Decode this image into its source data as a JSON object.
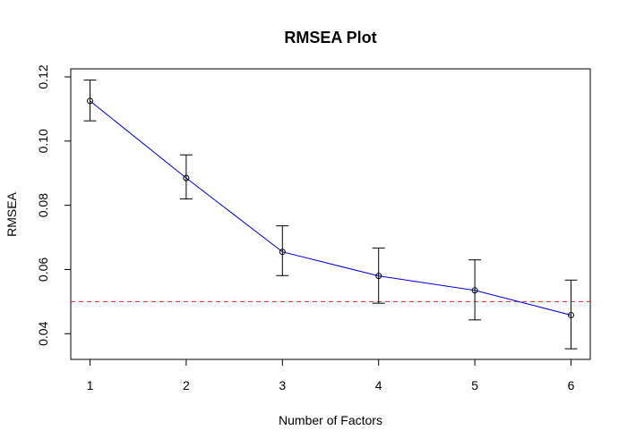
{
  "chart_data": {
    "type": "line",
    "title": "RMSEA Plot",
    "xlabel": "Number of Factors",
    "ylabel": "RMSEA",
    "x": [
      1,
      2,
      3,
      4,
      5,
      6
    ],
    "xlim": [
      0.8,
      6.2
    ],
    "ylim": [
      0.032,
      0.1225
    ],
    "xticks": [
      1,
      2,
      3,
      4,
      5,
      6
    ],
    "yticks": [
      0.04,
      0.06,
      0.08,
      0.1,
      0.12
    ],
    "ytick_labels": [
      "0.04",
      "0.06",
      "0.08",
      "0.10",
      "0.12"
    ],
    "grid": false,
    "series": [
      {
        "values": [
          0.1125,
          0.0885,
          0.0655,
          0.058,
          0.0535,
          0.0458
        ],
        "lower": [
          0.1063,
          0.082,
          0.0581,
          0.0495,
          0.0443,
          0.0353
        ],
        "upper": [
          0.119,
          0.0957,
          0.0736,
          0.0667,
          0.063,
          0.0567
        ],
        "color": "#0000cd"
      }
    ],
    "reference_line": {
      "y": 0.05,
      "color": "#dd2222",
      "style": "dashed"
    }
  }
}
